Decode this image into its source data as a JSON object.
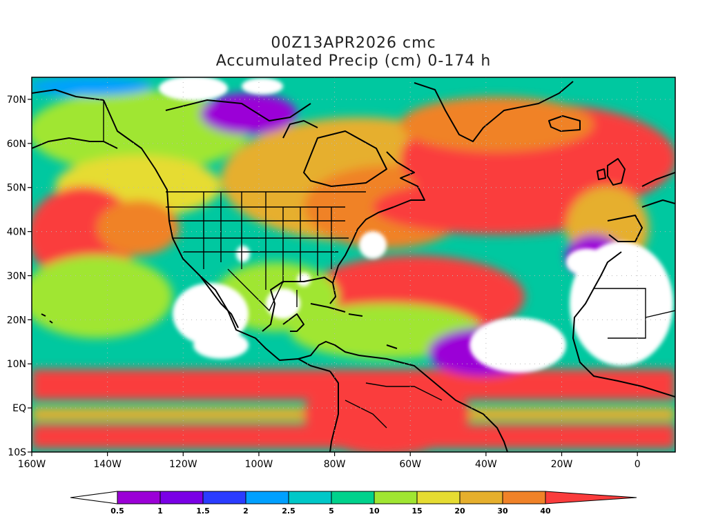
{
  "title": {
    "line1": "00Z13APR2026 cmc",
    "line2": "Accumulated Precip (cm) 0-174 h"
  },
  "map": {
    "type": "map",
    "field": "accumulated precipitation",
    "units": "cm",
    "projection": "lat-lon",
    "lon_range": [
      -160,
      10
    ],
    "lat_range": [
      -10,
      75
    ],
    "x_ticks": [
      {
        "value": -160,
        "label": "160W"
      },
      {
        "value": -140,
        "label": "140W"
      },
      {
        "value": -120,
        "label": "120W"
      },
      {
        "value": -100,
        "label": "100W"
      },
      {
        "value": -80,
        "label": "80W"
      },
      {
        "value": -60,
        "label": "60W"
      },
      {
        "value": -40,
        "label": "40W"
      },
      {
        "value": -20,
        "label": "20W"
      },
      {
        "value": 0,
        "label": "0"
      }
    ],
    "y_ticks": [
      {
        "value": 70,
        "label": "70N"
      },
      {
        "value": 60,
        "label": "60N"
      },
      {
        "value": 50,
        "label": "50N"
      },
      {
        "value": 40,
        "label": "40N"
      },
      {
        "value": 30,
        "label": "30N"
      },
      {
        "value": 20,
        "label": "20N"
      },
      {
        "value": 10,
        "label": "10N"
      },
      {
        "value": 0,
        "label": "EQ"
      },
      {
        "value": -10,
        "label": "10S"
      }
    ],
    "dry_colour": "#ffffff",
    "background_colour": "#00c8a0",
    "grid": "dotted"
  },
  "colorbar": {
    "levels": [
      "0.5",
      "1",
      "1.5",
      "2",
      "2.5",
      "5",
      "10",
      "15",
      "20",
      "30",
      "40"
    ],
    "colors": [
      "#9b00d7",
      "#7a00e6",
      "#2a3cff",
      "#00a0ff",
      "#00c8c8",
      "#00d28c",
      "#a0e632",
      "#e6dc32",
      "#e6af2d",
      "#f08228",
      "#fa3c3c"
    ],
    "below_colour": "#ffffff"
  }
}
